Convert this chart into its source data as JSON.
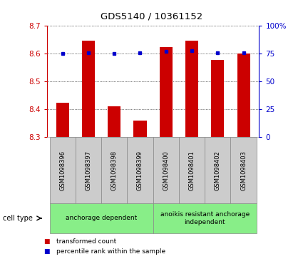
{
  "title": "GDS5140 / 10361152",
  "samples": [
    "GSM1098396",
    "GSM1098397",
    "GSM1098398",
    "GSM1098399",
    "GSM1098400",
    "GSM1098401",
    "GSM1098402",
    "GSM1098403"
  ],
  "red_values": [
    8.425,
    8.648,
    8.41,
    8.36,
    8.625,
    8.648,
    8.578,
    8.6
  ],
  "blue_values": [
    75,
    76,
    75,
    76,
    77,
    78,
    76,
    76
  ],
  "ylim_left": [
    8.3,
    8.7
  ],
  "ylim_right": [
    0,
    100
  ],
  "yticks_left": [
    8.3,
    8.4,
    8.5,
    8.6,
    8.7
  ],
  "yticks_right": [
    0,
    25,
    50,
    75,
    100
  ],
  "yticklabels_right": [
    "0",
    "25",
    "50",
    "75",
    "100%"
  ],
  "bar_color": "#cc0000",
  "dot_color": "#0000cc",
  "background_color": "#ffffff",
  "plot_bg": "#ffffff",
  "groups": [
    {
      "label": "anchorage dependent",
      "start": 0,
      "end": 4,
      "color": "#88ee88"
    },
    {
      "label": "anoikis resistant anchorage\nindependent",
      "start": 4,
      "end": 8,
      "color": "#88ee88"
    }
  ],
  "cell_type_label": "cell type",
  "legend_items": [
    {
      "color": "#cc0000",
      "marker": "s",
      "label": "transformed count"
    },
    {
      "color": "#0000cc",
      "marker": "s",
      "label": "percentile rank within the sample"
    }
  ],
  "sample_box_color": "#cccccc",
  "sample_box_edge": "#888888"
}
